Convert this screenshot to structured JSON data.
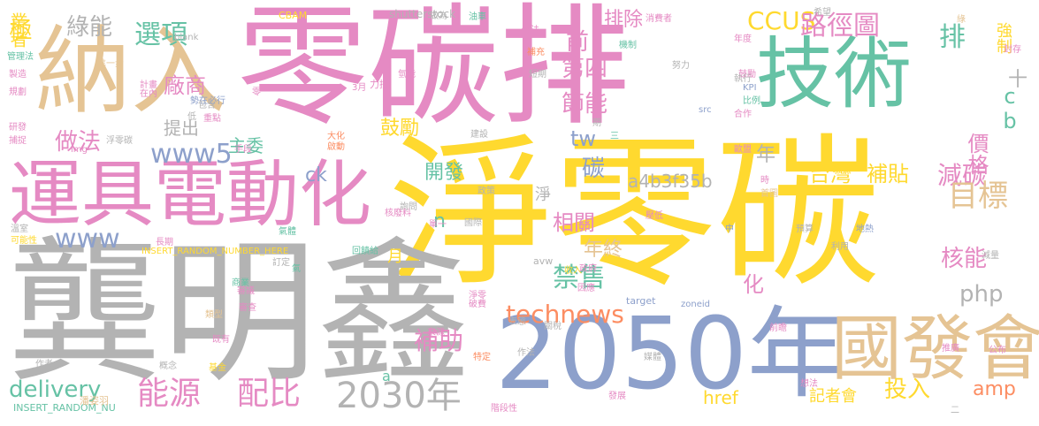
{
  "palette": {
    "pink": "#e58ac3",
    "yellow": "#ffd92f",
    "green": "#66c2a5",
    "orange": "#fc8d62",
    "blue": "#8da0cb",
    "lime": "#a6d854",
    "tan": "#e5c494",
    "gray": "#b3b3b3"
  },
  "words": [
    {
      "text": "零碳排",
      "color": "pink"
    },
    {
      "text": "淨零碳",
      "color": "yellow"
    },
    {
      "text": "龔明鑫",
      "color": "gray"
    },
    {
      "text": "2050年",
      "color": "blue"
    },
    {
      "text": "納入",
      "color": "tan"
    },
    {
      "text": "技術",
      "color": "green"
    },
    {
      "text": "運具電動化",
      "color": "pink"
    },
    {
      "text": "國發會",
      "color": "tan"
    },
    {
      "text": "2030年",
      "color": "gray"
    },
    {
      "text": "technews",
      "color": "orange"
    },
    {
      "text": "CCUS",
      "color": "yellow"
    },
    {
      "text": "路徑圖",
      "color": "pink"
    },
    {
      "text": "排",
      "color": "green"
    },
    {
      "text": "選項",
      "color": "green"
    },
    {
      "text": "綠能",
      "color": "gray"
    },
    {
      "text": "極",
      "color": "yellow"
    },
    {
      "text": "能源",
      "color": "pink"
    },
    {
      "text": "配比",
      "color": "pink"
    },
    {
      "text": "delivery",
      "color": "green"
    },
    {
      "text": "www5",
      "color": "blue"
    },
    {
      "text": "www",
      "color": "blue"
    },
    {
      "text": "做法",
      "color": "pink"
    },
    {
      "text": "廠商",
      "color": "pink"
    },
    {
      "text": "第四",
      "color": "pink"
    },
    {
      "text": "節能",
      "color": "pink"
    },
    {
      "text": "前",
      "color": "pink"
    },
    {
      "text": "排除",
      "color": "pink"
    },
    {
      "text": "台灣",
      "color": "yellow"
    },
    {
      "text": "補貼",
      "color": "yellow"
    },
    {
      "text": "減碳",
      "color": "pink"
    },
    {
      "text": "目標",
      "color": "tan"
    },
    {
      "text": "核能",
      "color": "pink"
    },
    {
      "text": "禁售",
      "color": "green"
    },
    {
      "text": "補助",
      "color": "pink"
    },
    {
      "text": "php",
      "color": "gray"
    },
    {
      "text": "amp",
      "color": "orange"
    },
    {
      "text": "投入",
      "color": "yellow"
    },
    {
      "text": "tw",
      "color": "blue"
    },
    {
      "text": "價格",
      "color": "pink"
    },
    {
      "text": "cb",
      "color": "green"
    },
    {
      "text": "開發",
      "color": "green"
    },
    {
      "text": "碳",
      "color": "blue"
    },
    {
      "text": "相關",
      "color": "pink"
    },
    {
      "text": "a4b3f35b",
      "color": "gray"
    },
    {
      "text": "主委",
      "color": "green"
    },
    {
      "text": "提出",
      "color": "gray"
    },
    {
      "text": "鼓勵",
      "color": "yellow"
    },
    {
      "text": "年終",
      "color": "tan"
    },
    {
      "text": "化",
      "color": "pink"
    },
    {
      "text": "ck",
      "color": "blue"
    },
    {
      "text": "href",
      "color": "yellow"
    },
    {
      "text": "記者會",
      "color": "yellow"
    },
    {
      "text": "業者",
      "color": "yellow"
    },
    {
      "text": "強制",
      "color": "yellow"
    },
    {
      "text": "年",
      "color": "gray"
    },
    {
      "text": "十",
      "color": "gray"
    },
    {
      "text": "月",
      "color": "yellow"
    },
    {
      "text": "n",
      "color": "green"
    },
    {
      "text": "a",
      "color": "green"
    },
    {
      "text": "淨",
      "color": "gray"
    },
    {
      "text": "shutterstock",
      "color": "gray"
    },
    {
      "text": "CBAM",
      "color": "yellow"
    },
    {
      "text": "_blank",
      "color": "gray"
    },
    {
      "text": "INSERT_RANDOM_NUMBER_HERE",
      "color": "yellow"
    },
    {
      "text": "INSERT_RANDOM_NU",
      "color": "green"
    },
    {
      "text": "target",
      "color": "blue"
    },
    {
      "text": "zoneid",
      "color": "blue"
    },
    {
      "text": "avw",
      "color": "gray"
    },
    {
      "text": "img",
      "color": "pink"
    },
    {
      "text": "src",
      "color": "blue"
    },
    {
      "text": "KPI",
      "color": "blue"
    },
    {
      "text": "3月",
      "color": "pink"
    },
    {
      "text": "力拼",
      "color": "pink"
    },
    {
      "text": "管理法",
      "color": "green"
    },
    {
      "text": "進一步",
      "color": "tan"
    },
    {
      "text": "製造",
      "color": "pink"
    },
    {
      "text": "計畫",
      "color": "pink"
    },
    {
      "text": "在內",
      "color": "pink"
    },
    {
      "text": "勢在必行",
      "color": "blue"
    },
    {
      "text": "規劃",
      "color": "pink"
    },
    {
      "text": "研發",
      "color": "pink"
    },
    {
      "text": "捕捉",
      "color": "pink"
    },
    {
      "text": "可能性",
      "color": "yellow"
    },
    {
      "text": "溫室",
      "color": "gray"
    },
    {
      "text": "作者",
      "color": "gray"
    },
    {
      "text": "潘姿羽",
      "color": "tan"
    },
    {
      "text": "概念",
      "color": "gray"
    },
    {
      "text": "基金",
      "color": "yellow"
    },
    {
      "text": "既有",
      "color": "pink"
    },
    {
      "text": "類型",
      "color": "tan"
    },
    {
      "text": "商業",
      "color": "green"
    },
    {
      "text": "審議",
      "color": "pink"
    },
    {
      "text": "審查",
      "color": "pink"
    },
    {
      "text": "訂定",
      "color": "gray"
    },
    {
      "text": "長期",
      "color": "pink"
    },
    {
      "text": "氣體",
      "color": "green"
    },
    {
      "text": "氣",
      "color": "green"
    },
    {
      "text": "核廢料",
      "color": "pink"
    },
    {
      "text": "回饋給",
      "color": "green"
    },
    {
      "text": "淨零",
      "color": "pink"
    },
    {
      "text": "單一",
      "color": "pink"
    },
    {
      "text": "詢問",
      "color": "gray"
    },
    {
      "text": "國際",
      "color": "gray"
    },
    {
      "text": "政策",
      "color": "gray"
    },
    {
      "text": "大化",
      "color": "orange"
    },
    {
      "text": "啟動",
      "color": "orange"
    },
    {
      "text": "手段",
      "color": "pink"
    },
    {
      "text": "浮零碳",
      "color": "gray"
    },
    {
      "text": "低",
      "color": "gray"
    },
    {
      "text": "零",
      "color": "pink"
    },
    {
      "text": "重點",
      "color": "pink"
    },
    {
      "text": "包含",
      "color": "gray"
    },
    {
      "text": "氫能",
      "color": "pink"
    },
    {
      "text": "做為",
      "color": "gray"
    },
    {
      "text": "修法",
      "color": "pink"
    },
    {
      "text": "補充",
      "color": "orange"
    },
    {
      "text": "機制",
      "color": "green"
    },
    {
      "text": "短期",
      "color": "gray"
    },
    {
      "text": "消費者",
      "color": "pink"
    },
    {
      "text": "油車",
      "color": "green"
    },
    {
      "text": "努力",
      "color": "gray"
    },
    {
      "text": "綠",
      "color": "tan"
    },
    {
      "text": "年度",
      "color": "pink"
    },
    {
      "text": "希望",
      "color": "gray"
    },
    {
      "text": "鼓勵",
      "color": "pink"
    },
    {
      "text": "封存",
      "color": "pink"
    },
    {
      "text": "比例",
      "color": "green"
    },
    {
      "text": "執行",
      "color": "gray"
    },
    {
      "text": "合作",
      "color": "pink"
    },
    {
      "text": "三",
      "color": "green"
    },
    {
      "text": "期",
      "color": "gray"
    },
    {
      "text": "建設",
      "color": "gray"
    },
    {
      "text": "歐盟",
      "color": "pink"
    },
    {
      "text": "時",
      "color": "pink"
    },
    {
      "text": "預算",
      "color": "gray"
    },
    {
      "text": "壓低",
      "color": "pink"
    },
    {
      "text": "首圖",
      "color": "tan"
    },
    {
      "text": "中",
      "color": "blue"
    },
    {
      "text": "地熱",
      "color": "blue"
    },
    {
      "text": "減量",
      "color": "gray"
    },
    {
      "text": "利用",
      "color": "gray"
    },
    {
      "text": "收入",
      "color": "yellow"
    },
    {
      "text": "表態",
      "color": "gray"
    },
    {
      "text": "關稅",
      "color": "gray"
    },
    {
      "text": "政府",
      "color": "pink"
    },
    {
      "text": "因應",
      "color": "pink"
    },
    {
      "text": "破費",
      "color": "pink"
    },
    {
      "text": "來源",
      "color": "pink"
    },
    {
      "text": "特定",
      "color": "orange"
    },
    {
      "text": "作法",
      "color": "gray"
    },
    {
      "text": "媒體",
      "color": "gray"
    },
    {
      "text": "發展",
      "color": "pink"
    },
    {
      "text": "階段性",
      "color": "pink"
    },
    {
      "text": "前瞻",
      "color": "pink"
    },
    {
      "text": "想法",
      "color": "pink"
    },
    {
      "text": "推廣",
      "color": "pink"
    },
    {
      "text": "公布",
      "color": "pink"
    },
    {
      "text": "二",
      "color": "gray"
    }
  ]
}
